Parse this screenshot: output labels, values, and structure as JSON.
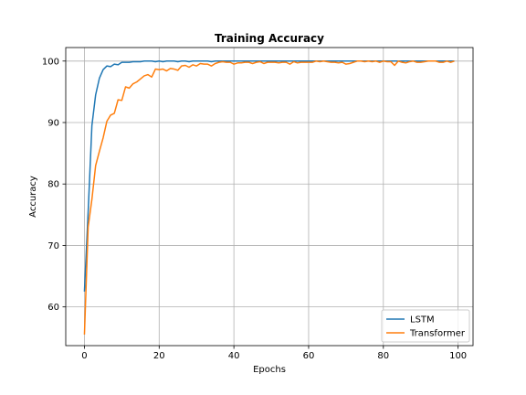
{
  "chart_data": {
    "type": "line",
    "title": "Training Accuracy",
    "xlabel": "Epochs",
    "ylabel": "Accuracy",
    "xlim": [
      -5,
      104
    ],
    "ylim": [
      53.7,
      102.2
    ],
    "x_ticks": [
      0,
      20,
      40,
      60,
      80,
      100
    ],
    "y_ticks": [
      60,
      70,
      80,
      90,
      100
    ],
    "grid": true,
    "legend_position": "lower-right",
    "series": [
      {
        "name": "LSTM",
        "color": "#1f77b4",
        "x": [
          0,
          1,
          2,
          3,
          4,
          5,
          6,
          7,
          8,
          9,
          10,
          11,
          12,
          13,
          14,
          15,
          16,
          17,
          18,
          19,
          20,
          21,
          22,
          23,
          24,
          25,
          26,
          27,
          28,
          29,
          30,
          31,
          32,
          33,
          34,
          35,
          36,
          37,
          38,
          39,
          40,
          41,
          42,
          43,
          44,
          45,
          46,
          47,
          48,
          49,
          50,
          51,
          52,
          53,
          54,
          55,
          56,
          57,
          58,
          59,
          60,
          61,
          62,
          63,
          64,
          65,
          66,
          67,
          68,
          69,
          70,
          71,
          72,
          73,
          74,
          75,
          76,
          77,
          78,
          79,
          80,
          81,
          82,
          83,
          84,
          85,
          86,
          87,
          88,
          89,
          90,
          91,
          92,
          93,
          94,
          95,
          96,
          97,
          98,
          99
        ],
        "values": [
          62.5,
          75.5,
          89.5,
          94.5,
          97.2,
          98.6,
          99.2,
          99.1,
          99.5,
          99.4,
          99.8,
          99.8,
          99.8,
          99.9,
          99.9,
          99.9,
          100.0,
          100.0,
          100.0,
          99.9,
          100.0,
          99.9,
          100.0,
          100.0,
          100.0,
          99.9,
          100.0,
          100.0,
          99.9,
          100.0,
          100.0,
          100.0,
          100.0,
          100.0,
          99.9,
          100.0,
          100.0,
          100.0,
          100.0,
          100.0,
          100.0,
          100.0,
          100.0,
          100.0,
          100.0,
          100.0,
          100.0,
          100.0,
          100.0,
          100.0,
          100.0,
          100.0,
          100.0,
          100.0,
          100.0,
          100.0,
          100.0,
          100.0,
          100.0,
          100.0,
          100.0,
          100.0,
          100.0,
          100.0,
          100.0,
          100.0,
          100.0,
          100.0,
          100.0,
          100.0,
          100.0,
          100.0,
          100.0,
          100.0,
          100.0,
          100.0,
          100.0,
          100.0,
          100.0,
          100.0,
          100.0,
          100.0,
          100.0,
          100.0,
          100.0,
          100.0,
          100.0,
          100.0,
          100.0,
          100.0,
          100.0,
          100.0,
          100.0,
          100.0,
          100.0,
          100.0,
          100.0,
          100.0,
          100.0,
          100.0
        ]
      },
      {
        "name": "Transformer",
        "color": "#ff7f0e",
        "x": [
          0,
          1,
          2,
          3,
          4,
          5,
          6,
          7,
          8,
          9,
          10,
          11,
          12,
          13,
          14,
          15,
          16,
          17,
          18,
          19,
          20,
          21,
          22,
          23,
          24,
          25,
          26,
          27,
          28,
          29,
          30,
          31,
          32,
          33,
          34,
          35,
          36,
          37,
          38,
          39,
          40,
          41,
          42,
          43,
          44,
          45,
          46,
          47,
          48,
          49,
          50,
          51,
          52,
          53,
          54,
          55,
          56,
          57,
          58,
          59,
          60,
          61,
          62,
          63,
          64,
          65,
          66,
          67,
          68,
          69,
          70,
          71,
          72,
          73,
          74,
          75,
          76,
          77,
          78,
          79,
          80,
          81,
          82,
          83,
          84,
          85,
          86,
          87,
          88,
          89,
          90,
          91,
          92,
          93,
          94,
          95,
          96,
          97,
          98,
          99
        ],
        "values": [
          55.5,
          73.0,
          77.5,
          83.0,
          85.3,
          87.5,
          90.2,
          91.2,
          91.5,
          93.7,
          93.6,
          95.8,
          95.6,
          96.3,
          96.6,
          97.1,
          97.6,
          97.8,
          97.4,
          98.7,
          98.6,
          98.7,
          98.4,
          98.8,
          98.7,
          98.5,
          99.2,
          99.3,
          99.0,
          99.4,
          99.2,
          99.6,
          99.5,
          99.5,
          99.2,
          99.6,
          99.8,
          99.9,
          99.8,
          99.8,
          99.5,
          99.7,
          99.7,
          99.8,
          99.8,
          99.6,
          99.8,
          99.9,
          99.6,
          99.8,
          99.8,
          99.8,
          99.7,
          99.8,
          99.8,
          99.5,
          99.9,
          99.7,
          99.8,
          99.8,
          99.8,
          99.8,
          100.0,
          99.9,
          100.0,
          99.9,
          99.8,
          99.8,
          99.7,
          99.8,
          99.5,
          99.6,
          99.8,
          100.0,
          100.0,
          99.9,
          100.0,
          99.9,
          100.0,
          99.8,
          100.0,
          99.9,
          99.9,
          99.3,
          100.0,
          99.8,
          99.7,
          99.9,
          100.0,
          99.8,
          99.8,
          99.9,
          100.0,
          100.0,
          100.0,
          99.8,
          99.8,
          100.0,
          99.8,
          100.0
        ]
      }
    ]
  }
}
